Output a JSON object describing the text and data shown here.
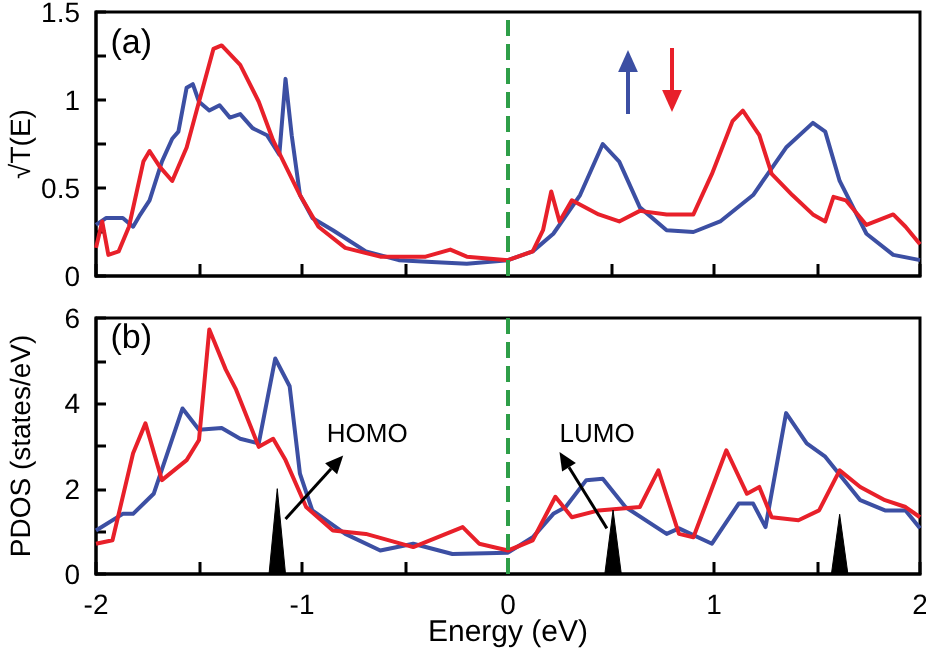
{
  "chart_data": [
    {
      "type": "line",
      "ylabel": "√T(E)",
      "annotations": [
        "(a)"
      ],
      "xlim": [
        -2,
        2
      ],
      "ylim": [
        0,
        1.5
      ],
      "xticks": [
        -2,
        {
          "value": -1.5,
          "label": null
        },
        -1,
        {
          "value": -0.5,
          "label": null
        },
        0,
        {
          "value": 0.5,
          "label": null
        },
        1,
        {
          "value": 1.5,
          "label": null
        },
        2
      ],
      "yticks": [
        0,
        {
          "value": 0.25,
          "label": null
        },
        0.5,
        {
          "value": 0.75,
          "label": null
        },
        1,
        {
          "value": 1.25,
          "label": null
        },
        1.5
      ],
      "tick_labels": "y",
      "marker": "none",
      "grid": false,
      "ref_lines": [
        {
          "axis": "x",
          "value": 0,
          "color": "#2e9e48",
          "line_style": "dashed"
        }
      ],
      "series": [
        {
          "color": "#3c4fa3",
          "x": [
            -2,
            -1.95,
            -1.87,
            -1.82,
            -1.79,
            -1.74,
            -1.68,
            -1.63,
            -1.6,
            -1.56,
            -1.53,
            -1.5,
            -1.45,
            -1.4,
            -1.35,
            -1.3,
            -1.24,
            -1.17,
            -1.11,
            -1.08,
            -1.05,
            -1.01,
            -0.95,
            -0.85,
            -0.69,
            -0.53,
            -0.37,
            -0.2,
            0,
            0.12,
            0.22,
            0.35,
            0.46,
            0.54,
            0.64,
            0.77,
            0.9,
            1.03,
            1.19,
            1.35,
            1.48,
            1.54,
            1.61,
            1.74,
            1.87,
            2
          ],
          "values": [
            0.29,
            0.33,
            0.33,
            0.28,
            0.34,
            0.43,
            0.65,
            0.78,
            0.82,
            1.07,
            1.09,
            0.99,
            0.94,
            0.97,
            0.9,
            0.92,
            0.84,
            0.8,
            0.69,
            1.12,
            0.8,
            0.46,
            0.33,
            0.26,
            0.14,
            0.09,
            0.08,
            0.07,
            0.09,
            0.14,
            0.24,
            0.46,
            0.75,
            0.65,
            0.39,
            0.26,
            0.25,
            0.31,
            0.46,
            0.73,
            0.87,
            0.82,
            0.54,
            0.24,
            0.12,
            0.09
          ]
        },
        {
          "color": "#e8202a",
          "x": [
            -2,
            -1.97,
            -1.94,
            -1.89,
            -1.84,
            -1.77,
            -1.74,
            -1.69,
            -1.63,
            -1.56,
            -1.5,
            -1.43,
            -1.39,
            -1.3,
            -1.21,
            -1.14,
            -1.09,
            -1.01,
            -0.92,
            -0.79,
            -0.62,
            -0.4,
            -0.28,
            -0.2,
            0,
            0.12,
            0.17,
            0.21,
            0.25,
            0.31,
            0.44,
            0.54,
            0.64,
            0.77,
            0.9,
            0.99,
            1.09,
            1.14,
            1.22,
            1.28,
            1.38,
            1.48,
            1.54,
            1.58,
            1.64,
            1.74,
            1.87,
            1.93,
            2
          ],
          "values": [
            0.16,
            0.31,
            0.12,
            0.14,
            0.28,
            0.65,
            0.71,
            0.62,
            0.54,
            0.73,
            0.99,
            1.29,
            1.31,
            1.2,
            0.99,
            0.77,
            0.65,
            0.46,
            0.28,
            0.16,
            0.11,
            0.11,
            0.15,
            0.11,
            0.09,
            0.14,
            0.26,
            0.48,
            0.31,
            0.43,
            0.35,
            0.31,
            0.37,
            0.35,
            0.35,
            0.58,
            0.88,
            0.94,
            0.8,
            0.58,
            0.46,
            0.35,
            0.31,
            0.45,
            0.43,
            0.29,
            0.35,
            0.28,
            0.18
          ]
        }
      ]
    },
    {
      "type": "line",
      "xlabel": "Energy (eV)",
      "ylabel": "PDOS (states/eV)",
      "annotations": [
        "(b)",
        "HOMO",
        "LUMO"
      ],
      "xlim": [
        -2,
        2
      ],
      "ylim": [
        0,
        6
      ],
      "xticks": [
        -2,
        {
          "value": -1.5,
          "label": null
        },
        -1,
        {
          "value": -0.5,
          "label": null
        },
        0,
        {
          "value": 0.5,
          "label": null
        },
        1,
        {
          "value": 1.5,
          "label": null
        },
        2
      ],
      "yticks": [
        0,
        {
          "value": 1,
          "label": null
        },
        2,
        {
          "value": 3,
          "label": null
        },
        4,
        {
          "value": 5,
          "label": null
        },
        6
      ],
      "marker": "none",
      "grid": false,
      "ref_lines": [
        {
          "axis": "x",
          "value": 0,
          "color": "#2e9e48",
          "line_style": "dashed"
        }
      ],
      "series": [
        {
          "color": "#3c4fa3",
          "x": [
            -2,
            -1.87,
            -1.82,
            -1.72,
            -1.58,
            -1.5,
            -1.39,
            -1.3,
            -1.21,
            -1.13,
            -1.06,
            -1.01,
            -0.95,
            -0.79,
            -0.62,
            -0.46,
            -0.27,
            0,
            0.12,
            0.22,
            0.28,
            0.38,
            0.46,
            0.57,
            0.77,
            0.83,
            0.99,
            1.12,
            1.19,
            1.25,
            1.35,
            1.45,
            1.54,
            1.71,
            1.83,
            1.93,
            2
          ],
          "values": [
            1.02,
            1.41,
            1.41,
            1.88,
            3.88,
            3.38,
            3.42,
            3.17,
            3.06,
            5.05,
            4.4,
            2.35,
            1.49,
            0.94,
            0.55,
            0.71,
            0.47,
            0.5,
            0.86,
            1.41,
            1.57,
            2.2,
            2.23,
            1.57,
            0.94,
            1.07,
            0.71,
            1.65,
            1.65,
            1.1,
            3.77,
            3.06,
            2.75,
            1.73,
            1.49,
            1.49,
            1.07
          ]
        },
        {
          "color": "#e8202a",
          "x": [
            -2,
            -1.92,
            -1.82,
            -1.76,
            -1.68,
            -1.56,
            -1.5,
            -1.45,
            -1.37,
            -1.32,
            -1.21,
            -1.14,
            -1.08,
            -0.98,
            -0.85,
            -0.69,
            -0.46,
            -0.22,
            -0.14,
            0,
            0.12,
            0.23,
            0.31,
            0.44,
            0.64,
            0.73,
            0.83,
            0.9,
            1.06,
            1.16,
            1.22,
            1.28,
            1.41,
            1.51,
            1.61,
            1.71,
            1.83,
            1.93,
            2
          ],
          "values": [
            0.71,
            0.79,
            2.83,
            3.53,
            2.2,
            2.67,
            3.14,
            5.73,
            4.79,
            4.32,
            2.98,
            3.17,
            2.67,
            1.57,
            1.02,
            0.94,
            0.63,
            1.1,
            0.71,
            0.55,
            0.79,
            1.81,
            1.33,
            1.49,
            1.57,
            2.43,
            0.94,
            0.86,
            2.9,
            1.88,
            2.04,
            1.33,
            1.26,
            1.49,
            2.43,
            2.04,
            1.73,
            1.57,
            1.33
          ]
        },
        {
          "type": "area",
          "color": "#000000",
          "x": [
            -1.16,
            -1.12,
            -1.08,
            0.47,
            0.51,
            0.55,
            1.57,
            1.61,
            1.65
          ],
          "values": [
            0,
            2,
            0,
            0,
            1.5,
            0,
            0,
            1.4,
            0
          ]
        }
      ]
    }
  ]
}
